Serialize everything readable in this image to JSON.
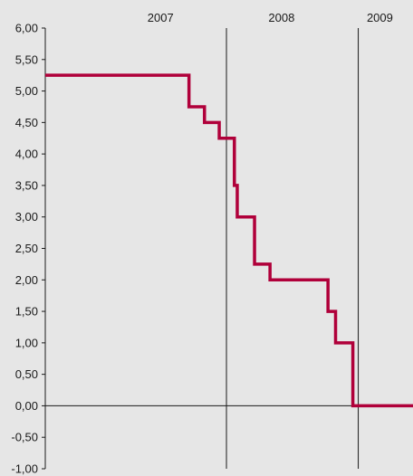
{
  "chart_data": {
    "type": "line",
    "title": "",
    "xlabel": "",
    "ylabel": "",
    "x_range": [
      "2006-08-15",
      "2009-06-01"
    ],
    "ylim": [
      -1.0,
      6.0
    ],
    "y_ticks": [
      -1.0,
      -0.5,
      0.0,
      0.5,
      1.0,
      1.5,
      2.0,
      2.5,
      3.0,
      3.5,
      4.0,
      4.5,
      5.0,
      5.5,
      6.0
    ],
    "y_tick_labels": [
      "-1,00",
      "-0,50",
      "0,00",
      "0,50",
      "1,00",
      "1,50",
      "2,00",
      "2,50",
      "3,00",
      "3,50",
      "4,00",
      "4,50",
      "5,00",
      "5,50",
      "6,00"
    ],
    "year_labels": [
      {
        "label": "2007",
        "center": "2007-07-01"
      },
      {
        "label": "2008",
        "center": "2008-06-01"
      },
      {
        "label": "2009",
        "center": "2009-03-01"
      }
    ],
    "year_boundaries": [
      "2007-12-31",
      "2008-12-31"
    ],
    "zero_line": true,
    "grid": false,
    "line_color": "#b0003a",
    "series": [
      {
        "step": "post",
        "x": [
          "2006-08-15",
          "2007-09-18",
          "2007-10-31",
          "2007-12-11",
          "2008-01-22",
          "2008-01-30",
          "2008-03-18",
          "2008-04-30",
          "2008-10-08",
          "2008-10-29",
          "2008-12-16",
          "2009-06-01"
        ],
        "values": [
          5.25,
          4.75,
          4.5,
          4.25,
          3.5,
          3.0,
          2.25,
          2.0,
          1.5,
          1.0,
          0.0,
          0.0
        ]
      }
    ]
  },
  "colors": {
    "background": "#e6e6e6",
    "axis": "#1a1a1a",
    "series": "#b0003a"
  }
}
